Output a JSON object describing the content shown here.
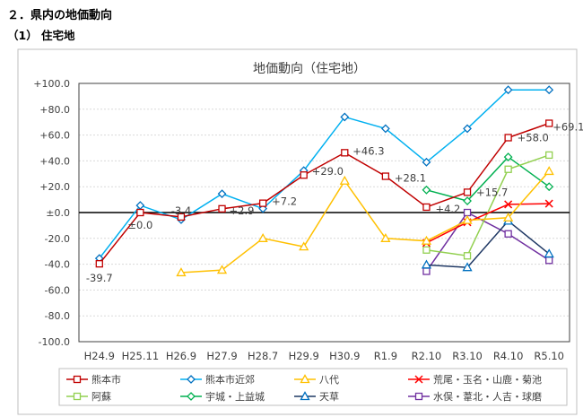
{
  "heading": "２．県内の地価動向",
  "subheading": "（1） 住宅地",
  "chart_data": {
    "type": "line",
    "title": "地価動向（住宅地）",
    "categories": [
      "H24.9",
      "H25.11",
      "H26.9",
      "H27.9",
      "H28.7",
      "H29.9",
      "H30.9",
      "R1.9",
      "R2.10",
      "R3.10",
      "R4.10",
      "R5.10"
    ],
    "ylim": [
      -100,
      100
    ],
    "yticks": [
      "+100.0",
      "+80.0",
      "+60.0",
      "+40.0",
      "+20.0",
      "±0.0",
      "-20.0",
      "-40.0",
      "-60.0",
      "-80.0",
      "-100.0"
    ],
    "grid": true,
    "legend_position": "bottom",
    "series": [
      {
        "name": "熊本市",
        "color": "#c00000",
        "marker": "square",
        "values": [
          -39.7,
          0.0,
          -3.4,
          2.9,
          7.2,
          29.0,
          46.3,
          28.1,
          4.2,
          15.7,
          58.0,
          69.1
        ],
        "labels": [
          "-39.7",
          "±0.0",
          "-3.4",
          "+2.9",
          "+7.2",
          "+29.0",
          "+46.3",
          "+28.1",
          "+4.2",
          "+15.7",
          "+58.0",
          "+69.1"
        ]
      },
      {
        "name": "熊本市近郊",
        "color": "#00b0f0",
        "marker_color": "#0070c0",
        "marker": "diamond",
        "values": [
          -35.5,
          5.5,
          -5.5,
          14.5,
          3,
          32.5,
          74,
          65,
          39,
          65,
          95,
          95
        ]
      },
      {
        "name": "八代",
        "color": "#ffc000",
        "marker": "triangle",
        "values": [
          null,
          null,
          -46.5,
          -44.5,
          -20,
          -26.5,
          24.5,
          -20,
          -22,
          -6,
          -4,
          32
        ]
      },
      {
        "name": "荒尾・玉名・山鹿・菊池",
        "color": "#ff0000",
        "marker": "x",
        "values": [
          null,
          null,
          null,
          null,
          null,
          null,
          null,
          null,
          -23.5,
          -7.5,
          6.3,
          6.9
        ]
      },
      {
        "name": "阿蘇",
        "color": "#92d050",
        "marker": "square",
        "values": [
          null,
          null,
          null,
          null,
          null,
          null,
          null,
          null,
          -29,
          -33.5,
          33.5,
          44.5
        ]
      },
      {
        "name": "宇城・上益城",
        "color": "#00b050",
        "marker": "diamond",
        "values": [
          null,
          null,
          null,
          null,
          null,
          null,
          null,
          null,
          17.5,
          9,
          43,
          20
        ]
      },
      {
        "name": "天草",
        "color": "#1f3864",
        "marker_color": "#0070c0",
        "marker": "triangle",
        "values": [
          null,
          null,
          null,
          null,
          null,
          null,
          null,
          null,
          -40.5,
          -42.5,
          -6.5,
          -32
        ]
      },
      {
        "name": "水俣・葦北・人吉・球磨",
        "color": "#7030a0",
        "marker": "square",
        "values": [
          null,
          null,
          null,
          null,
          null,
          null,
          null,
          null,
          -45.5,
          0,
          -16.5,
          -37
        ]
      }
    ]
  }
}
